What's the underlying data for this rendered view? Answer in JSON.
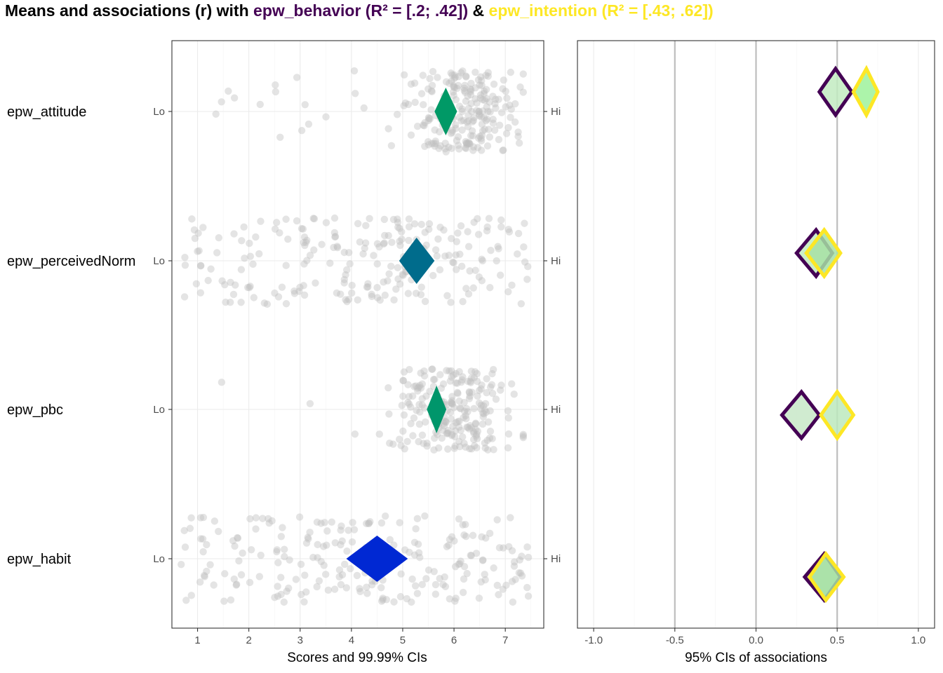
{
  "title": {
    "prefix": "Means and associations (r) with ",
    "behavior_part": "epw_behavior (R² = [.2; .42])",
    "joiner": " & ",
    "intention_part": "epw_intention (R² = [.43; .62])",
    "behavior_color": "#440154",
    "intention_color": "#FDE725"
  },
  "chart_data": [
    {
      "type": "scatter",
      "panel": "scores",
      "xlabel": "Scores and 99.99% CIs",
      "xlim": [
        0.5,
        7.75
      ],
      "x_ticks": [
        "1",
        "2",
        "3",
        "4",
        "5",
        "6",
        "7"
      ],
      "categories": [
        "epw_attitude",
        "epw_perceivedNorm",
        "epw_pbc",
        "epw_habit"
      ],
      "left_anchor": "Lo",
      "right_anchor": "Hi",
      "point_color": "#bebebe",
      "means": [
        {
          "category": "epw_attitude",
          "ci_lower": 5.62,
          "mean": 5.84,
          "ci_upper": 6.06,
          "color": "#009966"
        },
        {
          "category": "epw_perceivedNorm",
          "ci_lower": 4.93,
          "mean": 5.27,
          "ci_upper": 5.62,
          "color": "#006C8C"
        },
        {
          "category": "epw_pbc",
          "ci_lower": 5.47,
          "mean": 5.66,
          "ci_upper": 5.85,
          "color": "#00966B"
        },
        {
          "category": "epw_habit",
          "ci_lower": 3.9,
          "mean": 4.5,
          "ci_upper": 5.1,
          "color": "#0028D3"
        }
      ]
    },
    {
      "type": "scatter",
      "panel": "associations",
      "xlabel": "95% CIs of associations",
      "xlim": [
        -1.1,
        1.1
      ],
      "x_ticks": [
        "-1.0",
        "-0.5",
        "0.0",
        "0.5",
        "1.0"
      ],
      "reference_lines": [
        -0.5,
        0.0,
        0.5
      ],
      "categories": [
        "epw_attitude",
        "epw_perceivedNorm",
        "epw_pbc",
        "epw_habit"
      ],
      "series": [
        {
          "name": "epw_behavior",
          "outline_color": "#440154",
          "values": [
            {
              "category": "epw_attitude",
              "lower": 0.39,
              "r": 0.49,
              "upper": 0.59,
              "fill": "#C2EBC1"
            },
            {
              "category": "epw_perceivedNorm",
              "lower": 0.25,
              "r": 0.37,
              "upper": 0.47,
              "fill": "#C2EBC1"
            },
            {
              "category": "epw_pbc",
              "lower": 0.16,
              "r": 0.28,
              "upper": 0.39,
              "fill": "#C8E8C8"
            },
            {
              "category": "epw_habit",
              "lower": 0.3,
              "r": 0.42,
              "upper": 0.52,
              "fill": "#B5E7B4"
            }
          ]
        },
        {
          "name": "epw_intention",
          "outline_color": "#FDE725",
          "values": [
            {
              "category": "epw_attitude",
              "lower": 0.6,
              "r": 0.68,
              "upper": 0.75,
              "fill": "#9EF29B"
            },
            {
              "category": "epw_perceivedNorm",
              "lower": 0.31,
              "r": 0.42,
              "upper": 0.52,
              "fill": "#A7E0A4"
            },
            {
              "category": "epw_pbc",
              "lower": 0.4,
              "r": 0.5,
              "upper": 0.6,
              "fill": "#BCE9BD"
            },
            {
              "category": "epw_habit",
              "lower": 0.33,
              "r": 0.43,
              "upper": 0.54,
              "fill": "#A7E0A4"
            }
          ]
        }
      ]
    }
  ]
}
